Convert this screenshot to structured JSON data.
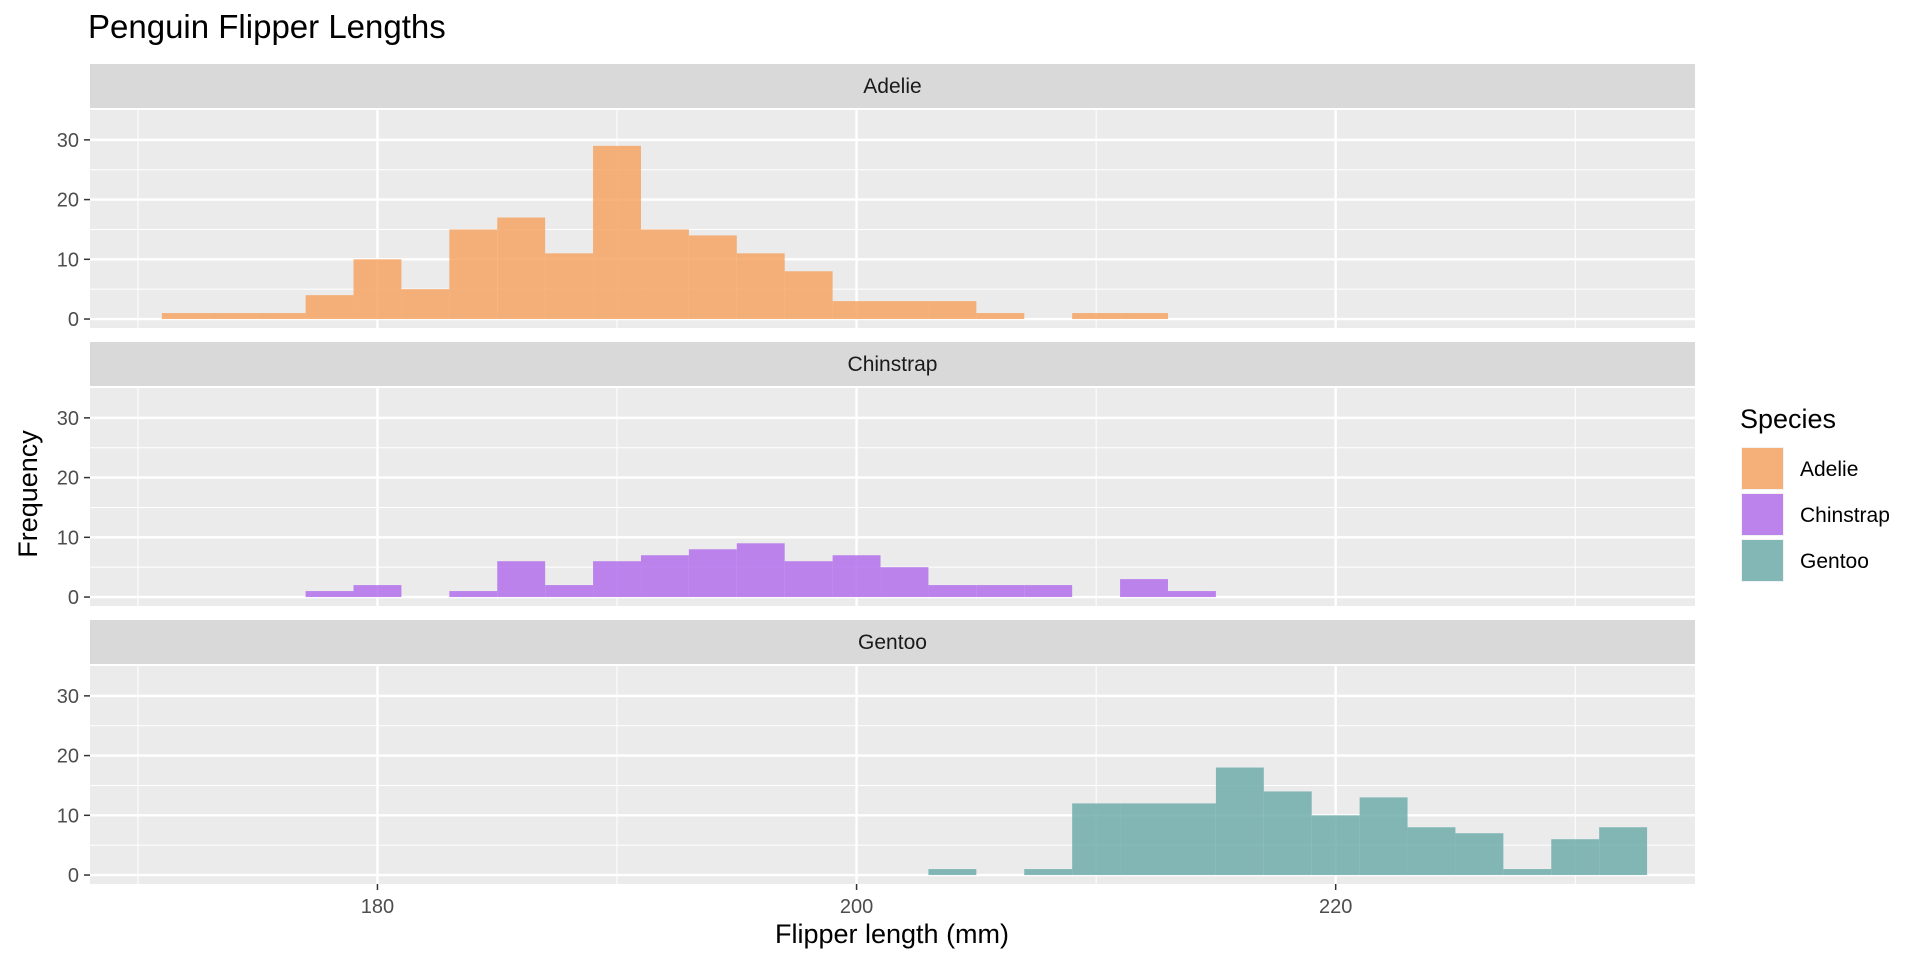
{
  "chart_data": {
    "type": "bar",
    "title": "Penguin Flipper Lengths",
    "xlabel": "Flipper length (mm)",
    "ylabel": "Frequency",
    "xlim": [
      168,
      235
    ],
    "ylim": [
      -1.5,
      35
    ],
    "x_ticks": [
      180,
      200,
      220
    ],
    "x_tick_labels": [
      "180",
      "200",
      "220"
    ],
    "y_ticks": [
      0,
      10,
      20,
      30
    ],
    "y_tick_labels": [
      "0",
      "10",
      "20",
      "30"
    ],
    "bin_width": 2,
    "grid": true,
    "legend": {
      "title": "Species",
      "position": "right",
      "entries": [
        "Adelie",
        "Chinstrap",
        "Gentoo"
      ]
    },
    "panels": [
      {
        "name": "Adelie",
        "color": "#F5A463",
        "bins": [
          {
            "x0": 171,
            "x1": 173,
            "count": 1
          },
          {
            "x0": 173,
            "x1": 175,
            "count": 1
          },
          {
            "x0": 175,
            "x1": 177,
            "count": 1
          },
          {
            "x0": 177,
            "x1": 179,
            "count": 4
          },
          {
            "x0": 179,
            "x1": 181,
            "count": 10
          },
          {
            "x0": 181,
            "x1": 183,
            "count": 5
          },
          {
            "x0": 183,
            "x1": 185,
            "count": 15
          },
          {
            "x0": 185,
            "x1": 187,
            "count": 17
          },
          {
            "x0": 187,
            "x1": 189,
            "count": 11
          },
          {
            "x0": 189,
            "x1": 191,
            "count": 29
          },
          {
            "x0": 191,
            "x1": 193,
            "count": 15
          },
          {
            "x0": 193,
            "x1": 195,
            "count": 14
          },
          {
            "x0": 195,
            "x1": 197,
            "count": 11
          },
          {
            "x0": 197,
            "x1": 199,
            "count": 8
          },
          {
            "x0": 199,
            "x1": 201,
            "count": 3
          },
          {
            "x0": 201,
            "x1": 203,
            "count": 3
          },
          {
            "x0": 203,
            "x1": 205,
            "count": 3
          },
          {
            "x0": 205,
            "x1": 207,
            "count": 1
          },
          {
            "x0": 209,
            "x1": 211,
            "count": 1
          },
          {
            "x0": 211,
            "x1": 213,
            "count": 1
          }
        ]
      },
      {
        "name": "Chinstrap",
        "color": "#B370EC",
        "bins": [
          {
            "x0": 177,
            "x1": 179,
            "count": 1
          },
          {
            "x0": 179,
            "x1": 181,
            "count": 2
          },
          {
            "x0": 183,
            "x1": 185,
            "count": 1
          },
          {
            "x0": 185,
            "x1": 187,
            "count": 6
          },
          {
            "x0": 187,
            "x1": 189,
            "count": 2
          },
          {
            "x0": 189,
            "x1": 191,
            "count": 6
          },
          {
            "x0": 191,
            "x1": 193,
            "count": 7
          },
          {
            "x0": 193,
            "x1": 195,
            "count": 8
          },
          {
            "x0": 195,
            "x1": 197,
            "count": 9
          },
          {
            "x0": 197,
            "x1": 199,
            "count": 6
          },
          {
            "x0": 199,
            "x1": 201,
            "count": 7
          },
          {
            "x0": 201,
            "x1": 203,
            "count": 5
          },
          {
            "x0": 203,
            "x1": 205,
            "count": 2
          },
          {
            "x0": 205,
            "x1": 207,
            "count": 2
          },
          {
            "x0": 207,
            "x1": 209,
            "count": 2
          },
          {
            "x0": 211,
            "x1": 213,
            "count": 3
          },
          {
            "x0": 213,
            "x1": 215,
            "count": 1
          }
        ]
      },
      {
        "name": "Gentoo",
        "color": "#6EADAB",
        "bins": [
          {
            "x0": 203,
            "x1": 205,
            "count": 1
          },
          {
            "x0": 207,
            "x1": 209,
            "count": 1
          },
          {
            "x0": 209,
            "x1": 211,
            "count": 12
          },
          {
            "x0": 211,
            "x1": 213,
            "count": 12
          },
          {
            "x0": 213,
            "x1": 215,
            "count": 12
          },
          {
            "x0": 215,
            "x1": 217,
            "count": 18
          },
          {
            "x0": 217,
            "x1": 219,
            "count": 14
          },
          {
            "x0": 219,
            "x1": 221,
            "count": 10
          },
          {
            "x0": 221,
            "x1": 223,
            "count": 13
          },
          {
            "x0": 223,
            "x1": 225,
            "count": 8
          },
          {
            "x0": 225,
            "x1": 227,
            "count": 7
          },
          {
            "x0": 227,
            "x1": 229,
            "count": 1
          },
          {
            "x0": 229,
            "x1": 231,
            "count": 6
          },
          {
            "x0": 231,
            "x1": 233,
            "count": 8
          }
        ]
      }
    ]
  }
}
